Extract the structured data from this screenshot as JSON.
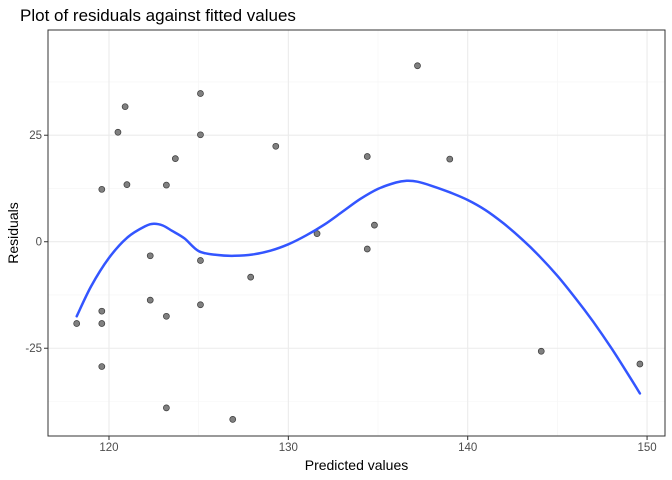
{
  "chart_data": {
    "type": "scatter",
    "title": "Plot of residuals against fitted values",
    "xlabel": "Predicted values",
    "ylabel": "Residuals",
    "xlim": [
      116.6,
      151.0
    ],
    "ylim": [
      -45.6,
      49.7
    ],
    "x_ticks": [
      120,
      130,
      140,
      150
    ],
    "y_ticks": [
      -25,
      0,
      25
    ],
    "x_tick_labels": [
      "120",
      "130",
      "140",
      "150"
    ],
    "y_tick_labels": [
      "-25",
      "0",
      "25"
    ],
    "grid": true,
    "points": [
      {
        "x": 118.2,
        "y": -19.2
      },
      {
        "x": 119.6,
        "y": 12.3
      },
      {
        "x": 119.6,
        "y": -16.3
      },
      {
        "x": 119.6,
        "y": -19.2
      },
      {
        "x": 119.6,
        "y": -29.3
      },
      {
        "x": 120.5,
        "y": 25.7
      },
      {
        "x": 120.9,
        "y": 31.7
      },
      {
        "x": 121.0,
        "y": 13.4
      },
      {
        "x": 122.3,
        "y": -3.3
      },
      {
        "x": 122.3,
        "y": -13.7
      },
      {
        "x": 123.2,
        "y": 13.3
      },
      {
        "x": 123.2,
        "y": -17.5
      },
      {
        "x": 123.2,
        "y": -39.0
      },
      {
        "x": 123.7,
        "y": 19.5
      },
      {
        "x": 125.1,
        "y": 34.8
      },
      {
        "x": 125.1,
        "y": 25.1
      },
      {
        "x": 125.1,
        "y": -4.4
      },
      {
        "x": 125.1,
        "y": -14.8
      },
      {
        "x": 126.9,
        "y": -41.7
      },
      {
        "x": 127.9,
        "y": -8.3
      },
      {
        "x": 129.3,
        "y": 22.4
      },
      {
        "x": 131.6,
        "y": 1.9
      },
      {
        "x": 134.4,
        "y": 20.0
      },
      {
        "x": 134.4,
        "y": -1.7
      },
      {
        "x": 134.8,
        "y": 3.9
      },
      {
        "x": 137.2,
        "y": 41.3
      },
      {
        "x": 139.0,
        "y": 19.4
      },
      {
        "x": 144.1,
        "y": -25.7
      },
      {
        "x": 149.6,
        "y": -28.7
      }
    ],
    "smooth": [
      {
        "x": 118.2,
        "y": -17.5
      },
      {
        "x": 119.0,
        "y": -10.5
      },
      {
        "x": 120.0,
        "y": -3.8
      },
      {
        "x": 121.0,
        "y": 0.9
      },
      {
        "x": 122.0,
        "y": 3.6
      },
      {
        "x": 122.5,
        "y": 4.2
      },
      {
        "x": 123.0,
        "y": 3.8
      },
      {
        "x": 123.5,
        "y": 2.6
      },
      {
        "x": 124.2,
        "y": 0.8
      },
      {
        "x": 125.0,
        "y": -2.2
      },
      {
        "x": 126.0,
        "y": -3.1
      },
      {
        "x": 127.0,
        "y": -3.3
      },
      {
        "x": 128.0,
        "y": -3.0
      },
      {
        "x": 129.0,
        "y": -2.1
      },
      {
        "x": 130.0,
        "y": -0.6
      },
      {
        "x": 131.0,
        "y": 1.5
      },
      {
        "x": 132.0,
        "y": 4.0
      },
      {
        "x": 133.0,
        "y": 7.0
      },
      {
        "x": 134.0,
        "y": 10.0
      },
      {
        "x": 135.0,
        "y": 12.4
      },
      {
        "x": 136.0,
        "y": 13.9
      },
      {
        "x": 136.6,
        "y": 14.3
      },
      {
        "x": 137.2,
        "y": 14.1
      },
      {
        "x": 138.0,
        "y": 13.1
      },
      {
        "x": 139.0,
        "y": 11.6
      },
      {
        "x": 140.0,
        "y": 9.8
      },
      {
        "x": 141.0,
        "y": 7.4
      },
      {
        "x": 142.0,
        "y": 4.3
      },
      {
        "x": 143.0,
        "y": 0.7
      },
      {
        "x": 144.0,
        "y": -3.4
      },
      {
        "x": 145.0,
        "y": -8.0
      },
      {
        "x": 146.0,
        "y": -13.2
      },
      {
        "x": 147.0,
        "y": -18.8
      },
      {
        "x": 148.0,
        "y": -24.9
      },
      {
        "x": 149.0,
        "y": -31.5
      },
      {
        "x": 149.6,
        "y": -35.6
      }
    ],
    "colors": {
      "point_fill": "#808080",
      "point_stroke": "#3a3a3a",
      "smooth_line": "#3355ff",
      "panel_border": "#333333",
      "grid_major": "#ebebeb",
      "grid_minor": "#f5f5f5"
    }
  }
}
